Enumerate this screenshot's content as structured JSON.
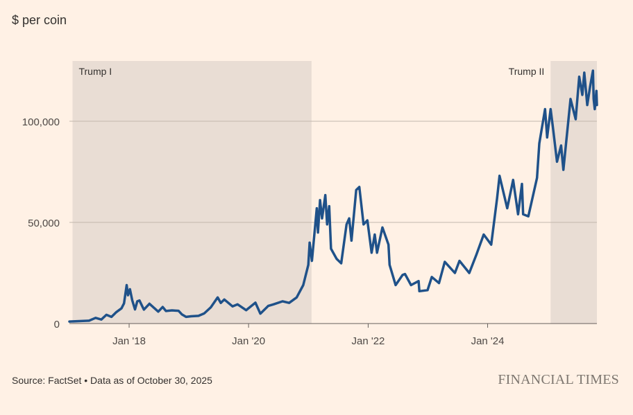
{
  "chart_data": {
    "type": "line",
    "ylabel": "$ per coin",
    "ylim": [
      0,
      130000
    ],
    "xlim": [
      "2017-01-01",
      "2025-10-30"
    ],
    "yticks": [
      {
        "value": 0,
        "label": "0"
      },
      {
        "value": 50000,
        "label": "50,000"
      },
      {
        "value": 100000,
        "label": "100,000"
      }
    ],
    "xticks": [
      {
        "value": "2018-01-01",
        "label": "Jan '18"
      },
      {
        "value": "2020-01-01",
        "label": "Jan '20"
      },
      {
        "value": "2022-01-01",
        "label": "Jan '22"
      },
      {
        "value": "2024-01-01",
        "label": "Jan '24"
      }
    ],
    "grid": "horizontal",
    "shaded_periods": [
      {
        "label": "Trump I",
        "start": "2017-01-20",
        "end": "2021-01-20"
      },
      {
        "label": "Trump II",
        "start": "2025-01-20",
        "end": "2025-10-30"
      }
    ],
    "colors": {
      "line": "#1f5189",
      "shade": "#e9ddd4",
      "background": "#fff1e5",
      "grid": "#c2b6ad"
    },
    "series": [
      {
        "points": [
          [
            "2017-01-01",
            1000
          ],
          [
            "2017-03-01",
            1200
          ],
          [
            "2017-05-01",
            1400
          ],
          [
            "2017-06-10",
            2800
          ],
          [
            "2017-07-15",
            2000
          ],
          [
            "2017-08-15",
            4300
          ],
          [
            "2017-09-15",
            3300
          ],
          [
            "2017-10-15",
            5700
          ],
          [
            "2017-11-15",
            7500
          ],
          [
            "2017-12-01",
            10000
          ],
          [
            "2017-12-17",
            19000
          ],
          [
            "2017-12-25",
            14000
          ],
          [
            "2018-01-06",
            17000
          ],
          [
            "2018-01-20",
            11500
          ],
          [
            "2018-02-06",
            7000
          ],
          [
            "2018-02-20",
            11000
          ],
          [
            "2018-03-05",
            11400
          ],
          [
            "2018-04-01",
            6900
          ],
          [
            "2018-05-05",
            9800
          ],
          [
            "2018-06-28",
            5900
          ],
          [
            "2018-07-25",
            8200
          ],
          [
            "2018-08-14",
            6200
          ],
          [
            "2018-09-20",
            6500
          ],
          [
            "2018-10-30",
            6300
          ],
          [
            "2018-11-20",
            4500
          ],
          [
            "2018-12-15",
            3300
          ],
          [
            "2019-01-15",
            3600
          ],
          [
            "2019-03-01",
            3800
          ],
          [
            "2019-04-05",
            5000
          ],
          [
            "2019-05-15",
            8000
          ],
          [
            "2019-06-26",
            12900
          ],
          [
            "2019-07-15",
            10200
          ],
          [
            "2019-08-06",
            11900
          ],
          [
            "2019-09-25",
            8500
          ],
          [
            "2019-10-26",
            9500
          ],
          [
            "2019-12-17",
            6600
          ],
          [
            "2020-02-12",
            10300
          ],
          [
            "2020-03-13",
            4900
          ],
          [
            "2020-04-30",
            8700
          ],
          [
            "2020-06-01",
            9500
          ],
          [
            "2020-07-27",
            11000
          ],
          [
            "2020-09-05",
            10200
          ],
          [
            "2020-10-21",
            12900
          ],
          [
            "2020-11-30",
            19000
          ],
          [
            "2020-12-31",
            29000
          ],
          [
            "2021-01-08",
            40000
          ],
          [
            "2021-01-22",
            31000
          ],
          [
            "2021-02-21",
            57000
          ],
          [
            "2021-02-28",
            45000
          ],
          [
            "2021-03-13",
            61000
          ],
          [
            "2021-03-25",
            52000
          ],
          [
            "2021-04-14",
            63500
          ],
          [
            "2021-04-25",
            49000
          ],
          [
            "2021-05-08",
            58000
          ],
          [
            "2021-05-19",
            37000
          ],
          [
            "2021-06-22",
            32000
          ],
          [
            "2021-07-20",
            29800
          ],
          [
            "2021-08-22",
            49000
          ],
          [
            "2021-09-07",
            52000
          ],
          [
            "2021-09-21",
            41000
          ],
          [
            "2021-10-20",
            66000
          ],
          [
            "2021-11-08",
            67500
          ],
          [
            "2021-12-04",
            49000
          ],
          [
            "2021-12-27",
            51000
          ],
          [
            "2022-01-22",
            35000
          ],
          [
            "2022-02-10",
            44000
          ],
          [
            "2022-02-24",
            35000
          ],
          [
            "2022-03-29",
            47500
          ],
          [
            "2022-05-05",
            39000
          ],
          [
            "2022-05-12",
            29000
          ],
          [
            "2022-06-18",
            19000
          ],
          [
            "2022-07-30",
            24000
          ],
          [
            "2022-08-14",
            24500
          ],
          [
            "2022-09-20",
            19000
          ],
          [
            "2022-11-05",
            21000
          ],
          [
            "2022-11-10",
            16000
          ],
          [
            "2022-12-30",
            16500
          ],
          [
            "2023-01-25",
            23000
          ],
          [
            "2023-03-10",
            20000
          ],
          [
            "2023-04-14",
            30500
          ],
          [
            "2023-06-15",
            25000
          ],
          [
            "2023-07-13",
            31000
          ],
          [
            "2023-09-11",
            25000
          ],
          [
            "2023-10-24",
            34000
          ],
          [
            "2023-12-08",
            44000
          ],
          [
            "2024-01-23",
            39000
          ],
          [
            "2024-02-28",
            62000
          ],
          [
            "2024-03-14",
            73000
          ],
          [
            "2024-04-30",
            57000
          ],
          [
            "2024-06-05",
            71000
          ],
          [
            "2024-07-05",
            54000
          ],
          [
            "2024-07-29",
            69000
          ],
          [
            "2024-08-05",
            54000
          ],
          [
            "2024-09-06",
            53000
          ],
          [
            "2024-10-29",
            72000
          ],
          [
            "2024-11-12",
            89000
          ],
          [
            "2024-12-17",
            106000
          ],
          [
            "2024-12-30",
            92000
          ],
          [
            "2025-01-20",
            106000
          ],
          [
            "2025-02-03",
            97000
          ],
          [
            "2025-02-28",
            80000
          ],
          [
            "2025-03-25",
            88000
          ],
          [
            "2025-04-08",
            76000
          ],
          [
            "2025-05-22",
            111000
          ],
          [
            "2025-06-22",
            101000
          ],
          [
            "2025-07-14",
            122000
          ],
          [
            "2025-08-02",
            113000
          ],
          [
            "2025-08-14",
            124000
          ],
          [
            "2025-09-01",
            108000
          ],
          [
            "2025-09-18",
            117000
          ],
          [
            "2025-10-06",
            125000
          ],
          [
            "2025-10-10",
            111000
          ],
          [
            "2025-10-17",
            106000
          ],
          [
            "2025-10-27",
            115000
          ],
          [
            "2025-10-30",
            108000
          ]
        ]
      }
    ]
  },
  "footer": {
    "source": "Source: FactSet • Data as of October 30, 2025",
    "logo": "FINANCIAL TIMES"
  }
}
